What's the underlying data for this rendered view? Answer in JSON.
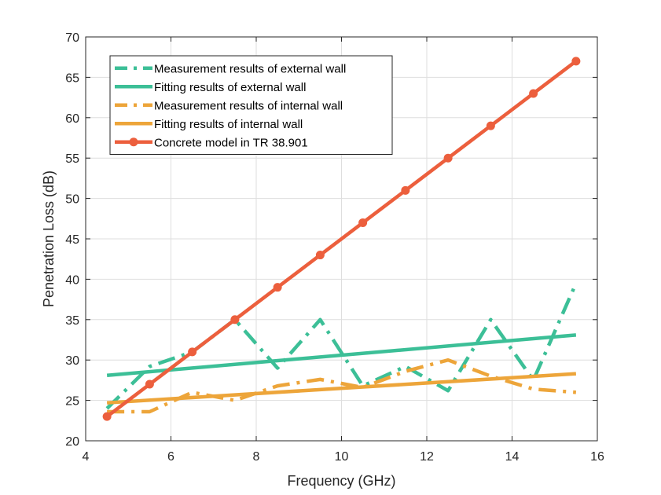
{
  "chart_data": {
    "type": "line",
    "title": "",
    "xlabel": "Frequency (GHz)",
    "ylabel": "Penetration Loss (dB)",
    "xlim": [
      4,
      16
    ],
    "ylim": [
      20,
      70
    ],
    "xticks": [
      4,
      6,
      8,
      10,
      12,
      14,
      16
    ],
    "yticks": [
      20,
      25,
      30,
      35,
      40,
      45,
      50,
      55,
      60,
      65,
      70
    ],
    "grid": true,
    "legend_position": "top-left",
    "series": [
      {
        "name": "Measurement results of external wall",
        "style": "dashdot",
        "color": "#3CBF97",
        "x": [
          4.5,
          5.5,
          6.5,
          7.5,
          8.5,
          9.5,
          10.5,
          11.5,
          12.5,
          13.5,
          14.5,
          15.5
        ],
        "y": [
          24.0,
          29.2,
          31.0,
          35.0,
          29.0,
          35.0,
          26.8,
          29.2,
          26.2,
          35.0,
          27.5,
          39.5
        ]
      },
      {
        "name": "Fitting results of external wall",
        "style": "solid",
        "color": "#3CBF97",
        "x": [
          4.5,
          15.5
        ],
        "y": [
          28.1,
          33.1
        ]
      },
      {
        "name": "Measurement results of internal wall",
        "style": "dashdot",
        "color": "#EDA53A",
        "x": [
          4.5,
          5.5,
          6.5,
          7.5,
          8.5,
          9.5,
          10.5,
          11.5,
          12.5,
          13.5,
          14.5,
          15.5
        ],
        "y": [
          23.6,
          23.6,
          26.0,
          25.0,
          26.8,
          27.6,
          26.6,
          28.6,
          30.0,
          28.0,
          26.4,
          26.0
        ]
      },
      {
        "name": "Fitting results of internal wall",
        "style": "solid",
        "color": "#EDA53A",
        "x": [
          4.5,
          15.5
        ],
        "y": [
          24.7,
          28.3
        ]
      },
      {
        "name": "Concrete model in TR 38.901",
        "style": "solid-marker",
        "color": "#EC5F3D",
        "x": [
          4.5,
          5.5,
          6.5,
          7.5,
          8.5,
          9.5,
          10.5,
          11.5,
          12.5,
          13.5,
          14.5,
          15.5
        ],
        "y": [
          23,
          27,
          31,
          35,
          39,
          43,
          47,
          51,
          55,
          59,
          63,
          67
        ]
      }
    ]
  }
}
